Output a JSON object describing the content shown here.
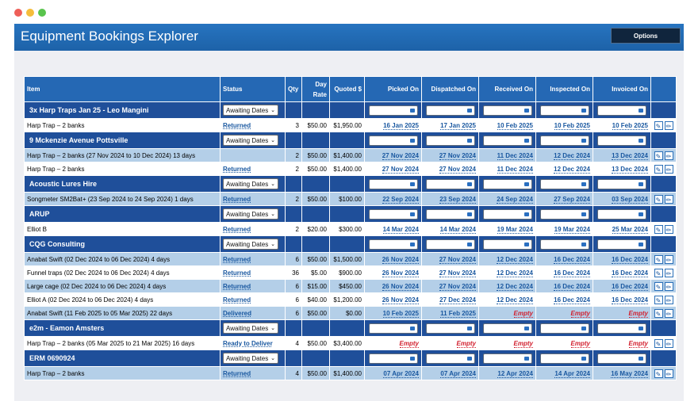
{
  "app": {
    "title": "Equipment Bookings Explorer",
    "options_label": "Options"
  },
  "table": {
    "headers": [
      "Item",
      "Status",
      "Qty",
      "Day Rate",
      "Quoted $",
      "Picked On",
      "Dispatched On",
      "Received On",
      "Inspected On",
      "Invoiced On"
    ],
    "empty_text": "Empty"
  },
  "groups": [
    {
      "name": "3x Harp Traps Jan 25 - Leo Mangini",
      "status": "Awaiting Dates",
      "items": [
        {
          "item": "Harp Trap – 2 banks",
          "status": "Returned",
          "qty": "3",
          "rate": "$50.00",
          "quoted": "$1,950.00",
          "dates": [
            "16 Jan 2025",
            "17 Jan 2025",
            "10 Feb 2025",
            "10 Feb 2025",
            "10 Feb 2025"
          ]
        }
      ]
    },
    {
      "name": "9 Mckenzie Avenue Pottsville",
      "status": "Awaiting Dates",
      "items": [
        {
          "item": "Harp Trap – 2 banks (27 Nov 2024 to 10 Dec 2024) 13 days",
          "status": "",
          "qty": "2",
          "rate": "$50.00",
          "quoted": "$1,400.00",
          "dates": [
            "27 Nov 2024",
            "27 Nov 2024",
            "11 Dec 2024",
            "12 Dec 2024",
            "13 Dec 2024"
          ]
        },
        {
          "item": "Harp Trap – 2 banks",
          "status": "Returned",
          "qty": "2",
          "rate": "$50.00",
          "quoted": "$1,400.00",
          "dates": [
            "27 Nov 2024",
            "27 Nov 2024",
            "11 Dec 2024",
            "12 Dec 2024",
            "13 Dec 2024"
          ]
        }
      ]
    },
    {
      "name": "Acoustic Lures Hire",
      "status": "Awaiting Dates",
      "items": [
        {
          "item": "Songmeter SM2Bat+ (23 Sep 2024 to 24 Sep 2024) 1 days",
          "status": "Returned",
          "qty": "2",
          "rate": "$50.00",
          "quoted": "$100.00",
          "dates": [
            "22 Sep 2024",
            "23 Sep 2024",
            "24 Sep 2024",
            "27 Sep 2024",
            "03 Sep 2024"
          ]
        }
      ]
    },
    {
      "name": "ARUP",
      "status": "Awaiting Dates",
      "items": [
        {
          "item": "Elliot B",
          "status": "Returned",
          "qty": "2",
          "rate": "$20.00",
          "quoted": "$300.00",
          "dates": [
            "14 Mar 2024",
            "14 Mar 2024",
            "19 Mar 2024",
            "19 Mar 2024",
            "25 Mar 2024"
          ]
        }
      ]
    },
    {
      "name": "CQG Consulting",
      "status": "Awaiting Dates",
      "items": [
        {
          "item": "Anabat Swift (02 Dec 2024 to 06 Dec 2024) 4 days",
          "status": "Returned",
          "qty": "6",
          "rate": "$50.00",
          "quoted": "$1,500.00",
          "dates": [
            "26 Nov 2024",
            "27 Nov 2024",
            "12 Dec 2024",
            "16 Dec 2024",
            "16 Dec 2024"
          ]
        },
        {
          "item": "Funnel traps (02 Dec 2024 to 06 Dec 2024) 4 days",
          "status": "Returned",
          "qty": "36",
          "rate": "$5.00",
          "quoted": "$900.00",
          "dates": [
            "26 Nov 2024",
            "27 Nov 2024",
            "12 Dec 2024",
            "16 Dec 2024",
            "16 Dec 2024"
          ]
        },
        {
          "item": "Large cage (02 Dec 2024 to 06 Dec 2024) 4 days",
          "status": "Returned",
          "qty": "6",
          "rate": "$15.00",
          "quoted": "$450.00",
          "dates": [
            "26 Nov 2024",
            "27 Nov 2024",
            "12 Dec 2024",
            "16 Dec 2024",
            "16 Dec 2024"
          ]
        },
        {
          "item": "Elliot A (02 Dec 2024 to 06 Dec 2024) 4 days",
          "status": "Returned",
          "qty": "6",
          "rate": "$40.00",
          "quoted": "$1,200.00",
          "dates": [
            "26 Nov 2024",
            "27 Dec 2024",
            "12 Dec 2024",
            "16 Dec 2024",
            "16 Dec 2024"
          ]
        },
        {
          "item": "Anabat Swift (11 Feb 2025 to 05 Mar 2025) 22 days",
          "status": "Delivered",
          "qty": "6",
          "rate": "$50.00",
          "quoted": "$0.00",
          "dates": [
            "10 Feb 2025",
            "11 Feb 2025",
            "",
            "",
            ""
          ]
        }
      ]
    },
    {
      "name": "e2m - Eamon Amsters",
      "status": "Awaiting Dates",
      "items": [
        {
          "item": "Harp Trap – 2 banks (05 Mar 2025 to 21 Mar 2025) 16 days",
          "status": "Ready to Deliver",
          "qty": "4",
          "rate": "$50.00",
          "quoted": "$3,400.00",
          "dates": [
            "",
            "",
            "",
            "",
            ""
          ]
        }
      ]
    },
    {
      "name": "ERM 0690924",
      "status": "Awaiting Dates",
      "items": [
        {
          "item": "Harp Trap – 2 banks",
          "status": "Returned",
          "qty": "4",
          "rate": "$50.00",
          "quoted": "$1,400.00",
          "dates": [
            "07 Apr 2024",
            "07 Apr 2024",
            "12 Apr 2024",
            "14 Apr 2024",
            "16 May 2024"
          ]
        }
      ]
    }
  ]
}
